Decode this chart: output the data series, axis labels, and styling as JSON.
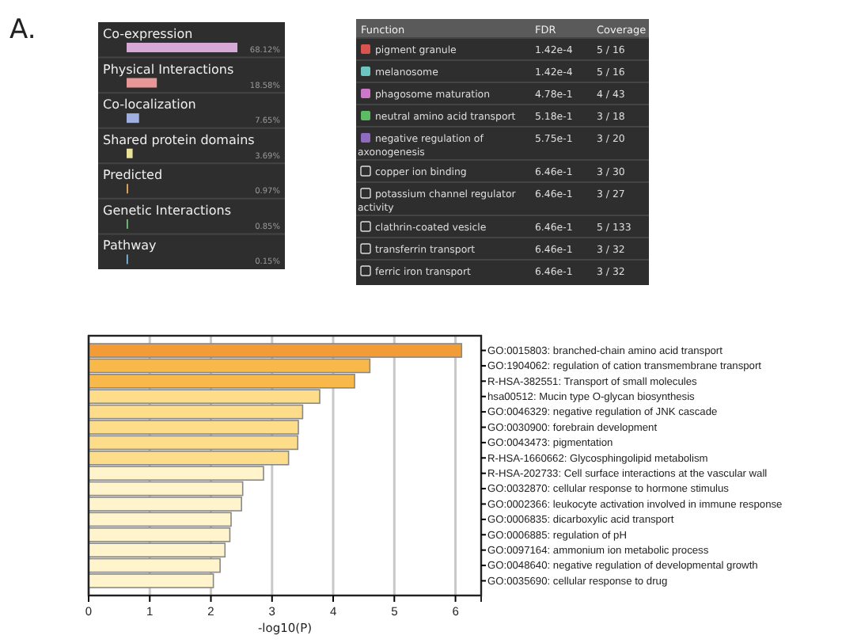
{
  "chart_data": [
    {
      "type": "bar",
      "orientation": "horizontal",
      "annotations": [
        "A."
      ],
      "categories": [
        "Co-expression",
        "Physical Interactions",
        "Co-localization",
        "Shared protein domains",
        "Predicted",
        "Genetic Interactions",
        "Pathway"
      ],
      "values": [
        68.12,
        18.58,
        7.65,
        3.69,
        0.97,
        0.85,
        0.15
      ],
      "value_labels": [
        "68.12%",
        "18.58%",
        "7.65%",
        "3.69%",
        "0.97%",
        "0.85%",
        "0.15%"
      ],
      "colors": [
        "#d6a8d8",
        "#e99696",
        "#9fb0e0",
        "#e8e29a",
        "#d9a25a",
        "#7fbf7f",
        "#8fc4e8"
      ]
    },
    {
      "type": "other",
      "annotations": [
        "Function",
        "FDR",
        "Coverage"
      ],
      "categories": [
        "pigment granule",
        "melanosome",
        "phagosome maturation",
        "neutral amino acid transport",
        "negative regulation of axonogenesis",
        "copper ion binding",
        "potassium channel regulator activity",
        "clathrin-coated vesicle",
        "transferrin transport",
        "ferric iron transport"
      ],
      "cell_labels": [
        [
          "1.42e-4",
          "5 / 16"
        ],
        [
          "1.42e-4",
          "5 / 16"
        ],
        [
          "4.78e-1",
          "4 / 43"
        ],
        [
          "5.18e-1",
          "3 / 18"
        ],
        [
          "5.75e-1",
          "3 / 20"
        ],
        [
          "6.46e-1",
          "3 / 30"
        ],
        [
          "6.46e-1",
          "3 / 27"
        ],
        [
          "6.46e-1",
          "5 / 133"
        ],
        [
          "6.46e-1",
          "3 / 32"
        ],
        [
          "6.46e-1",
          "3 / 32"
        ]
      ],
      "colors": [
        "#d9534f",
        "#6cc5c0",
        "#cc77c8",
        "#5dbb63",
        "#8e6bbf",
        null,
        null,
        null,
        null,
        null
      ]
    },
    {
      "type": "bar",
      "orientation": "horizontal",
      "xlabel": "-log10(P)",
      "grid": "x",
      "categories": [
        "GO:0015803: branched-chain amino acid transport",
        "GO:1904062: regulation of cation transmembrane transport",
        "R-HSA-382551: Transport of small molecules",
        "hsa00512: Mucin type O-glycan biosynthesis",
        "GO:0046329: negative regulation of JNK cascade",
        "GO:0030900: forebrain development",
        "GO:0043473: pigmentation",
        "R-HSA-1660662: Glycosphingolipid metabolism",
        "R-HSA-202733: Cell surface interactions at the vascular wall",
        "GO:0032870: cellular response to hormone stimulus",
        "GO:0002366: leukocyte activation involved in immune response",
        "GO:0006835: dicarboxylic acid transport",
        "GO:0006885: regulation of pH",
        "GO:0097164: ammonium ion metabolic process",
        "GO:0048640: negative regulation of developmental growth",
        "GO:0035690: cellular response to drug"
      ],
      "values": [
        6.1,
        4.6,
        4.35,
        3.78,
        3.5,
        3.43,
        3.42,
        3.27,
        2.86,
        2.52,
        2.5,
        2.33,
        2.31,
        2.23,
        2.15,
        2.04
      ],
      "colors": [
        "#f39c35",
        "#f9b94a",
        "#f9b94a",
        "#fddc8a",
        "#fddc8a",
        "#fddc8a",
        "#fddc8a",
        "#fddc8a",
        "#fff4cc",
        "#fff4cc",
        "#fff4cc",
        "#fff4cc",
        "#fff4cc",
        "#fff4cc",
        "#fff4cc",
        "#fff4cc"
      ],
      "xlim": [
        0,
        6.42
      ],
      "xticks": [
        0,
        1,
        2,
        3,
        4,
        5,
        6
      ]
    }
  ]
}
